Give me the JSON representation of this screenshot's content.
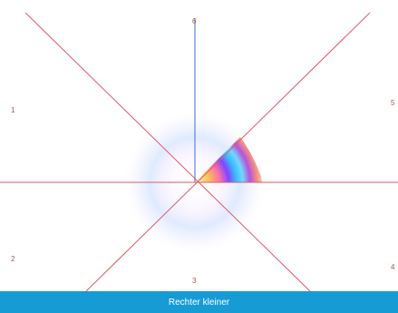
{
  "colors": {
    "diagonal_line": "#e05a6a",
    "horizontal_line": "#e05a6a",
    "vertical_line": "#3b6fd6",
    "bar_bg": "#169bd5",
    "bar_text": "#ffffff"
  },
  "labels": {
    "l1": "1",
    "l2": "2",
    "l3": "3",
    "l4": "4",
    "l5": "5",
    "l6": "6"
  },
  "bottom_bar": {
    "text": "Rechter kleiner"
  }
}
